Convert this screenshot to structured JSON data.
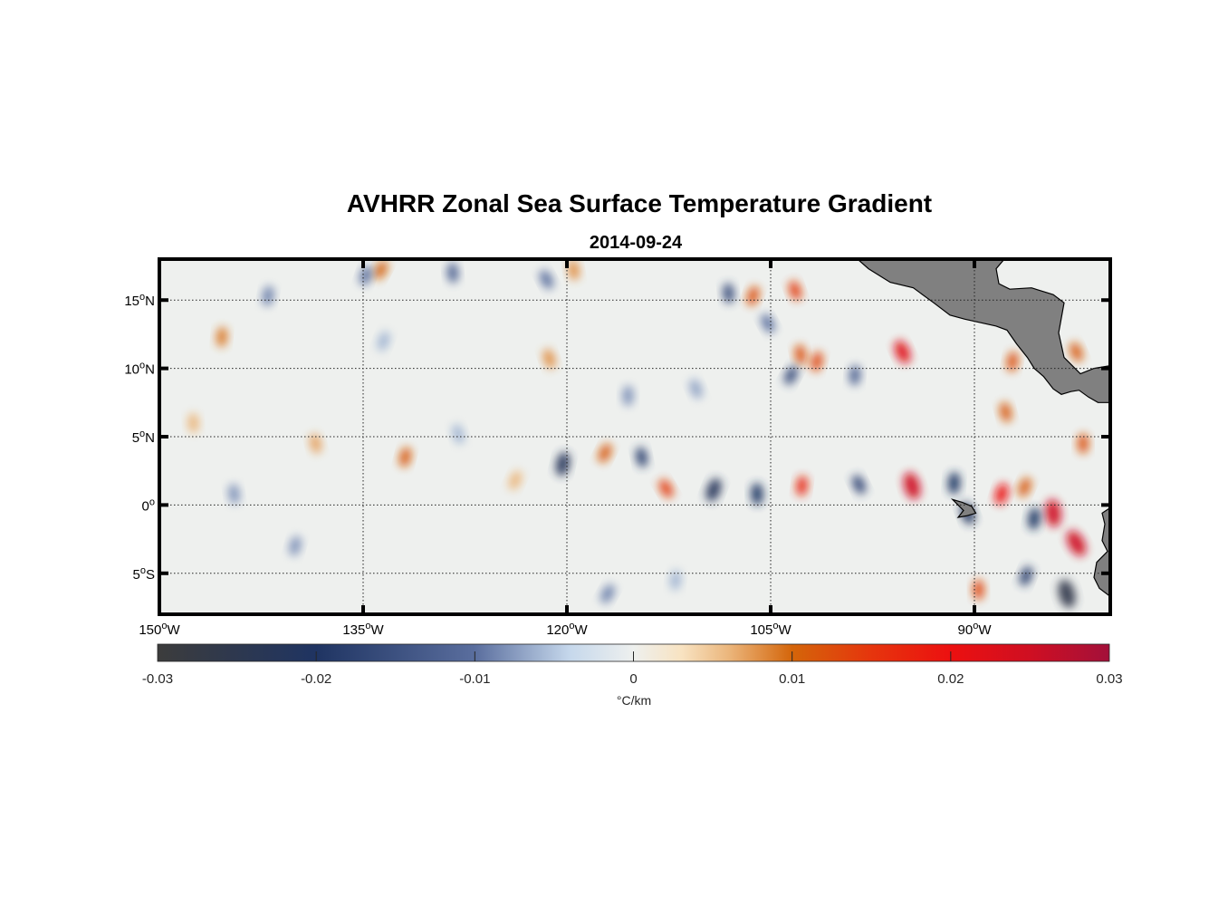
{
  "chart_data": {
    "type": "heatmap",
    "title": "AVHRR Zonal Sea Surface Temperature Gradient",
    "subtitle": "2014-09-24",
    "xlim": [
      -150,
      -80
    ],
    "ylim": [
      -8,
      18
    ],
    "x_ticks": [
      {
        "value": -150,
        "num": "150",
        "deg": "o",
        "hemi": "W"
      },
      {
        "value": -135,
        "num": "135",
        "deg": "o",
        "hemi": "W"
      },
      {
        "value": -120,
        "num": "120",
        "deg": "o",
        "hemi": "W"
      },
      {
        "value": -105,
        "num": "105",
        "deg": "o",
        "hemi": "W"
      },
      {
        "value": -90,
        "num": "90",
        "deg": "o",
        "hemi": "W"
      }
    ],
    "y_ticks": [
      {
        "value": 15,
        "num": "15",
        "deg": "o",
        "hemi": "N"
      },
      {
        "value": 10,
        "num": "10",
        "deg": "o",
        "hemi": "N"
      },
      {
        "value": 5,
        "num": "5",
        "deg": "o",
        "hemi": "N"
      },
      {
        "value": 0,
        "num": "0",
        "deg": "o",
        "hemi": ""
      },
      {
        "value": -5,
        "num": "5",
        "deg": "o",
        "hemi": "S"
      }
    ],
    "grid": true,
    "colorbar": {
      "label": "°C/km",
      "range": [
        -0.03,
        0.03
      ],
      "ticks": [
        {
          "value": -0.03,
          "label": "-0.03"
        },
        {
          "value": -0.02,
          "label": "-0.02"
        },
        {
          "value": -0.01,
          "label": "-0.01"
        },
        {
          "value": 0,
          "label": "0"
        },
        {
          "value": 0.01,
          "label": "0.01"
        },
        {
          "value": 0.02,
          "label": "0.02"
        },
        {
          "value": 0.03,
          "label": "0.03"
        }
      ],
      "stops": [
        {
          "value": -0.03,
          "color": "#3c3c3c"
        },
        {
          "value": -0.02,
          "color": "#1f3462"
        },
        {
          "value": -0.01,
          "color": "#5a6e9e"
        },
        {
          "value": -0.004,
          "color": "#c6d8ec"
        },
        {
          "value": 0,
          "color": "#eef0ee"
        },
        {
          "value": 0.003,
          "color": "#f8e3c2"
        },
        {
          "value": 0.006,
          "color": "#ebb67c"
        },
        {
          "value": 0.01,
          "color": "#d4650a"
        },
        {
          "value": 0.015,
          "color": "#e6350d"
        },
        {
          "value": 0.02,
          "color": "#ec1010"
        },
        {
          "value": 0.025,
          "color": "#cf0f22"
        },
        {
          "value": 0.03,
          "color": "#a3103a"
        }
      ]
    },
    "features": [
      {
        "lon": -112.7,
        "lat": 1.2,
        "value": 0.014
      },
      {
        "lon": -102.7,
        "lat": 1.4,
        "value": 0.017
      },
      {
        "lon": -94.6,
        "lat": 1.4,
        "value": 0.025
      },
      {
        "lon": -109.2,
        "lat": 1.1,
        "value": -0.022
      },
      {
        "lon": -106.0,
        "lat": 0.8,
        "value": -0.02
      },
      {
        "lon": -98.5,
        "lat": 1.5,
        "value": -0.017
      },
      {
        "lon": -120.3,
        "lat": 3.0,
        "value": -0.022
      },
      {
        "lon": -114.5,
        "lat": 3.5,
        "value": -0.018
      },
      {
        "lon": -117.2,
        "lat": 3.8,
        "value": 0.011
      },
      {
        "lon": -91.5,
        "lat": 1.6,
        "value": -0.02
      },
      {
        "lon": -90.5,
        "lat": -0.6,
        "value": -0.021
      },
      {
        "lon": -88.0,
        "lat": 0.8,
        "value": 0.02
      },
      {
        "lon": -84.2,
        "lat": -0.6,
        "value": 0.025
      },
      {
        "lon": -82.5,
        "lat": -2.8,
        "value": 0.025
      },
      {
        "lon": -85.6,
        "lat": -1.0,
        "value": -0.02
      },
      {
        "lon": -83.2,
        "lat": -6.5,
        "value": -0.026
      },
      {
        "lon": -86.2,
        "lat": -5.2,
        "value": -0.018
      },
      {
        "lon": -89.7,
        "lat": -6.2,
        "value": 0.013
      },
      {
        "lon": -95.3,
        "lat": 11.2,
        "value": 0.022
      },
      {
        "lon": -101.6,
        "lat": 10.5,
        "value": 0.013
      },
      {
        "lon": -102.8,
        "lat": 11.0,
        "value": 0.012
      },
      {
        "lon": -103.5,
        "lat": 9.5,
        "value": -0.016
      },
      {
        "lon": -98.8,
        "lat": 9.5,
        "value": -0.012
      },
      {
        "lon": -103.2,
        "lat": 15.7,
        "value": 0.014
      },
      {
        "lon": -106.3,
        "lat": 15.3,
        "value": 0.012
      },
      {
        "lon": -108.1,
        "lat": 15.5,
        "value": -0.016
      },
      {
        "lon": -105.2,
        "lat": 13.3,
        "value": -0.01
      },
      {
        "lon": -87.2,
        "lat": 10.5,
        "value": 0.012
      },
      {
        "lon": -87.7,
        "lat": 6.8,
        "value": 0.011
      },
      {
        "lon": -86.3,
        "lat": 1.3,
        "value": 0.011
      },
      {
        "lon": -82.0,
        "lat": 4.5,
        "value": 0.012
      },
      {
        "lon": -82.5,
        "lat": 11.2,
        "value": 0.011
      },
      {
        "lon": -131.9,
        "lat": 3.5,
        "value": 0.011
      },
      {
        "lon": -119.5,
        "lat": 17.2,
        "value": 0.008
      },
      {
        "lon": -133.7,
        "lat": 17.2,
        "value": 0.01
      },
      {
        "lon": -145.4,
        "lat": 12.3,
        "value": 0.009
      },
      {
        "lon": -121.3,
        "lat": 10.7,
        "value": 0.008
      },
      {
        "lon": -134.8,
        "lat": 16.8,
        "value": -0.01
      },
      {
        "lon": -128.4,
        "lat": 17.0,
        "value": -0.012
      },
      {
        "lon": -121.5,
        "lat": 16.5,
        "value": -0.01
      },
      {
        "lon": -142.0,
        "lat": 15.3,
        "value": -0.009
      },
      {
        "lon": -138.5,
        "lat": 4.5,
        "value": 0.007
      },
      {
        "lon": -123.8,
        "lat": 1.8,
        "value": 0.006
      },
      {
        "lon": -115.5,
        "lat": 8.0,
        "value": -0.008
      },
      {
        "lon": -110.5,
        "lat": 8.5,
        "value": -0.007
      },
      {
        "lon": -140.0,
        "lat": -3.0,
        "value": -0.008
      },
      {
        "lon": -144.5,
        "lat": 0.8,
        "value": -0.008
      },
      {
        "lon": -117.0,
        "lat": -6.5,
        "value": -0.009
      },
      {
        "lon": -112.0,
        "lat": -5.5,
        "value": -0.006
      },
      {
        "lon": -128.0,
        "lat": 5.2,
        "value": -0.006
      },
      {
        "lon": -133.5,
        "lat": 12.0,
        "value": -0.006
      },
      {
        "lon": -147.5,
        "lat": 6.0,
        "value": 0.006
      }
    ],
    "land": [
      {
        "name": "Central America",
        "color": "#808080",
        "points": [
          [
            -98.6,
            18
          ],
          [
            -97.8,
            17.3
          ],
          [
            -96.2,
            16.3
          ],
          [
            -94.5,
            15.9
          ],
          [
            -93.0,
            14.8
          ],
          [
            -91.8,
            13.9
          ],
          [
            -90.7,
            13.6
          ],
          [
            -89.3,
            13.3
          ],
          [
            -88.4,
            13.1
          ],
          [
            -87.6,
            12.8
          ],
          [
            -86.9,
            11.8
          ],
          [
            -86.1,
            10.8
          ],
          [
            -85.6,
            10.0
          ],
          [
            -84.9,
            9.4
          ],
          [
            -84.2,
            8.5
          ],
          [
            -83.6,
            8.1
          ],
          [
            -82.9,
            8.3
          ],
          [
            -82.3,
            8.4
          ],
          [
            -81.6,
            7.9
          ],
          [
            -80.9,
            7.5
          ],
          [
            -80,
            7.5
          ],
          [
            -80,
            10.2
          ],
          [
            -81.2,
            10.0
          ],
          [
            -82.2,
            9.6
          ],
          [
            -83.4,
            10.8
          ],
          [
            -83.8,
            12.6
          ],
          [
            -83.4,
            14.8
          ],
          [
            -84.2,
            15.4
          ],
          [
            -85.8,
            15.9
          ],
          [
            -87.4,
            15.8
          ],
          [
            -88.2,
            16.2
          ],
          [
            -88.4,
            17.3
          ],
          [
            -87.8,
            18
          ]
        ]
      },
      {
        "name": "South America",
        "color": "#808080",
        "points": [
          [
            -80,
            -0.2
          ],
          [
            -80.6,
            -0.6
          ],
          [
            -80.4,
            -1.4
          ],
          [
            -80.6,
            -2.6
          ],
          [
            -80.2,
            -3.4
          ],
          [
            -81.0,
            -4.2
          ],
          [
            -81.2,
            -5.3
          ],
          [
            -80.8,
            -6.1
          ],
          [
            -80.0,
            -6.7
          ]
        ]
      },
      {
        "name": "Galapagos",
        "color": "#808080",
        "points": [
          [
            -91.6,
            0.4
          ],
          [
            -91.2,
            0.0
          ],
          [
            -90.8,
            -0.4
          ],
          [
            -91.2,
            -0.9
          ],
          [
            -90.6,
            -0.8
          ],
          [
            -89.9,
            -0.6
          ],
          [
            -90.2,
            -0.1
          ],
          [
            -90.9,
            0.2
          ]
        ]
      }
    ]
  }
}
